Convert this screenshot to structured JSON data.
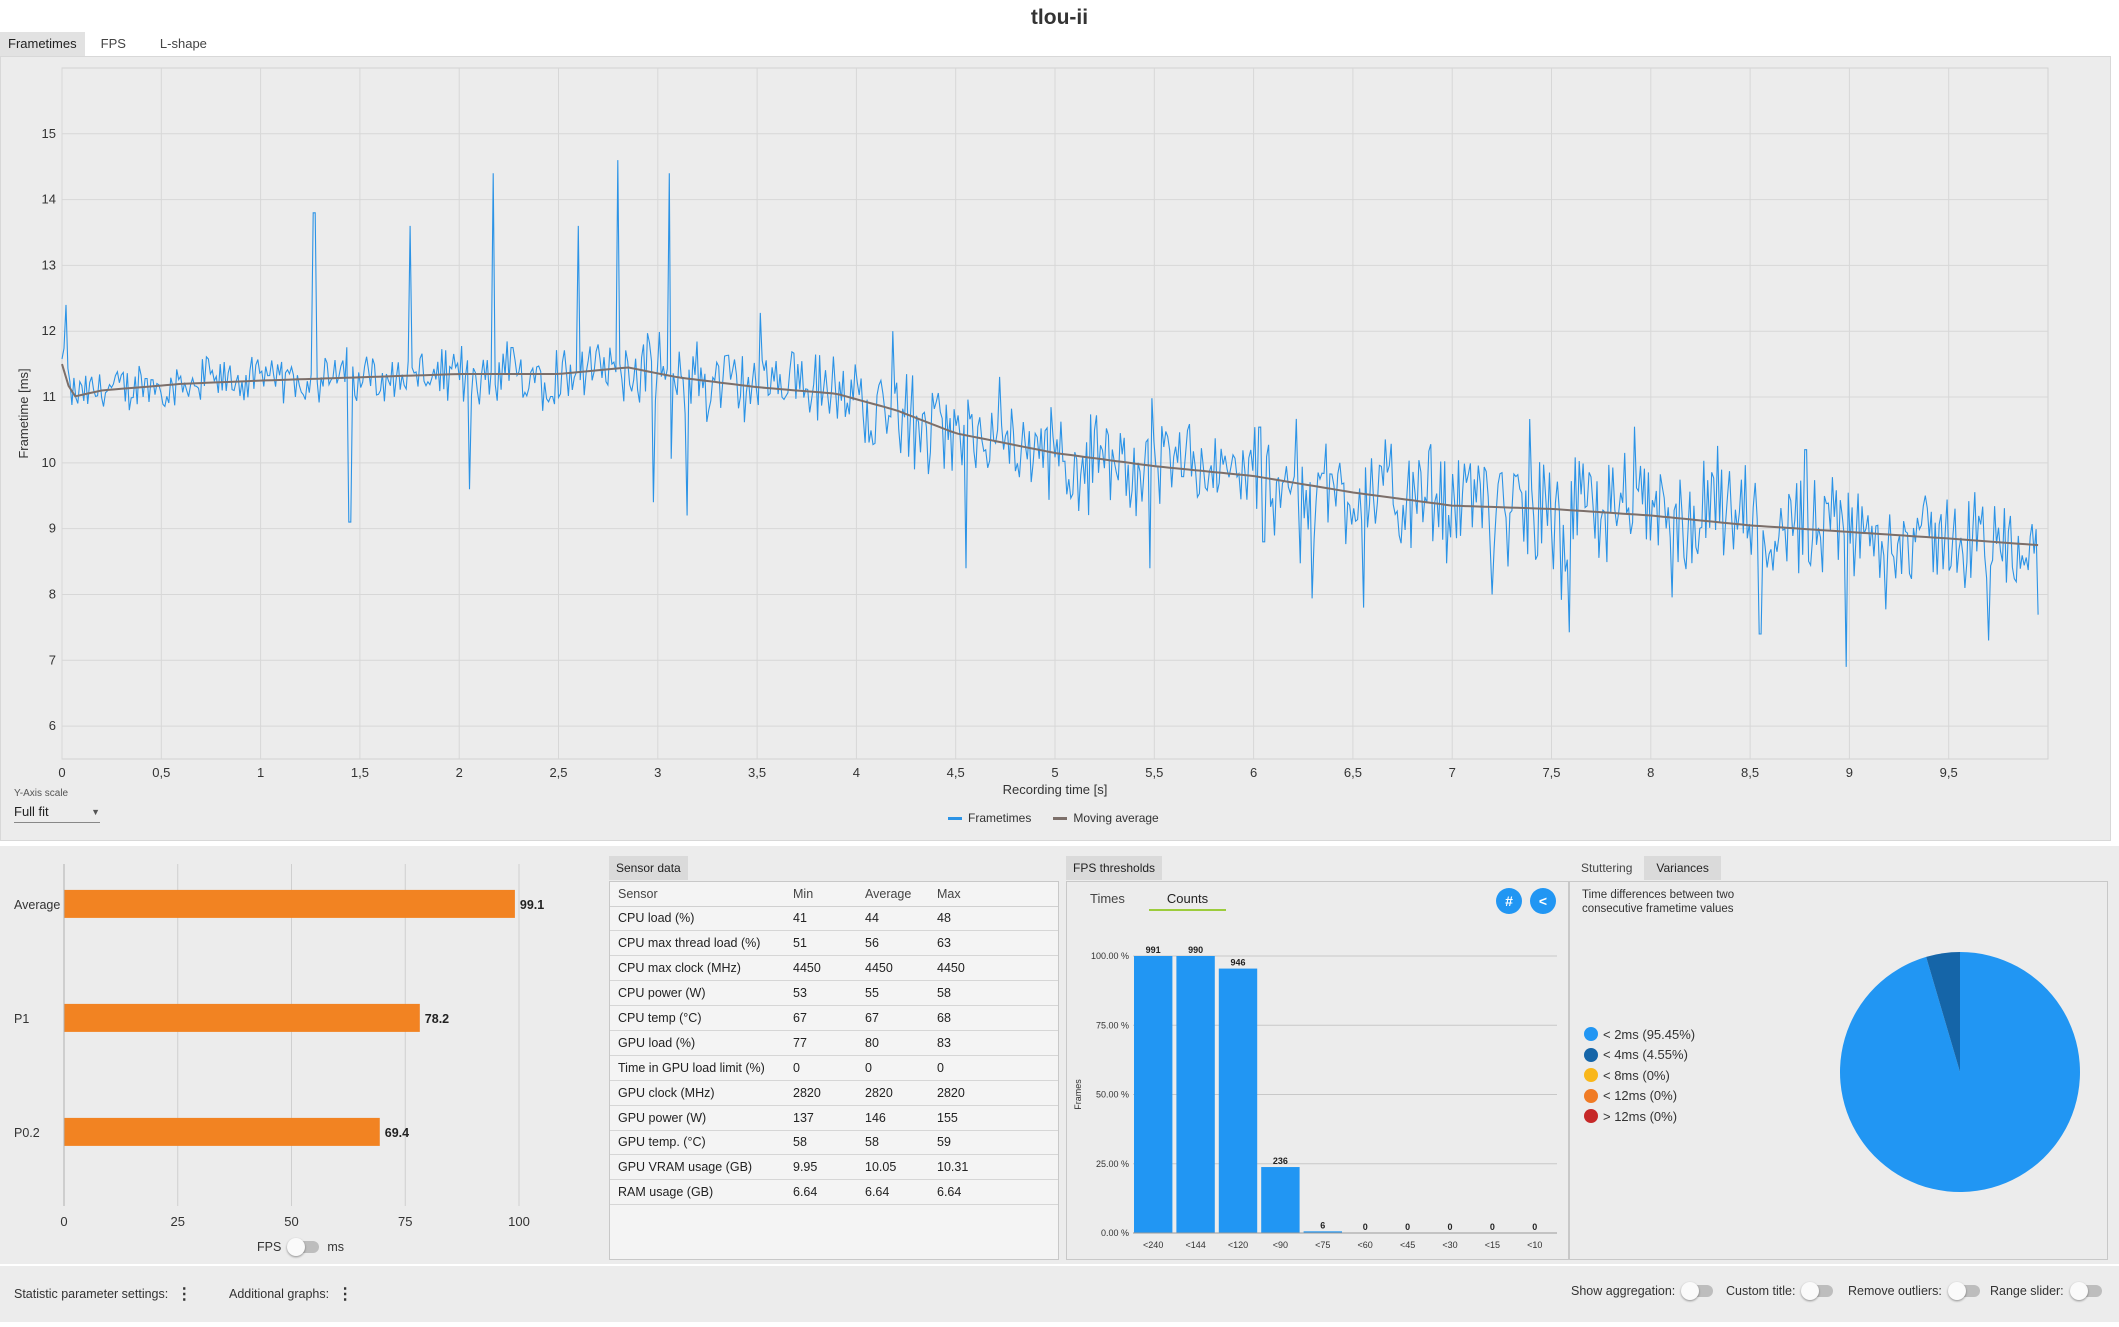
{
  "title": "tlou-ii",
  "main_tabs": [
    "Frametimes",
    "FPS",
    "L-shape"
  ],
  "y_axis_scale": {
    "label": "Y-Axis scale",
    "value": "Full fit"
  },
  "colors": {
    "frametimes": "#2b93e6",
    "moving_average": "#7c6f6a",
    "bars": "#f28322",
    "counts_bars": "#2196f3"
  },
  "chart_data": [
    {
      "type": "line",
      "xlabel": "Recording time [s]",
      "ylabel": "Frametime [ms]",
      "xlim": [
        0,
        10
      ],
      "ylim": [
        5.5,
        16
      ],
      "x_ticks": [
        "0",
        "0,5",
        "1",
        "1,5",
        "2",
        "2,5",
        "3",
        "3,5",
        "4",
        "4,5",
        "5",
        "5,5",
        "6",
        "6,5",
        "7",
        "7,5",
        "8",
        "8,5",
        "9",
        "9,5"
      ],
      "y_ticks": [
        "6",
        "7",
        "8",
        "9",
        "10",
        "11",
        "12",
        "13",
        "14",
        "15"
      ],
      "grid": true,
      "legend": "bottom-center",
      "series": [
        {
          "name": "Frametimes",
          "noise": [
            0.3,
            0.3,
            0.45,
            0.55,
            0.55,
            0.6,
            0.75,
            0.75,
            0.65,
            0.6,
            0.6
          ],
          "spikes": [
            [
              0.02,
              12.4
            ],
            [
              1.27,
              13.8
            ],
            [
              1.45,
              9.1
            ],
            [
              1.75,
              13.6
            ],
            [
              2.05,
              9.6
            ],
            [
              2.17,
              14.4
            ],
            [
              2.6,
              13.6
            ],
            [
              2.8,
              14.6
            ],
            [
              2.98,
              9.4
            ],
            [
              3.06,
              14.4
            ],
            [
              3.15,
              9.2
            ],
            [
              4.18,
              12
            ],
            [
              4.55,
              8.4
            ],
            [
              5.48,
              8.4
            ],
            [
              6.05,
              8.8
            ],
            [
              6.55,
              7.8
            ],
            [
              7.2,
              8.0
            ],
            [
              8.55,
              7.4
            ],
            [
              8.78,
              10.2
            ],
            [
              8.98,
              6.9
            ],
            [
              9.7,
              7.3
            ]
          ]
        },
        {
          "name": "Moving average",
          "x": [
            0,
            0.05,
            0.2,
            0.6,
            1.0,
            1.5,
            2.0,
            2.5,
            2.85,
            3.1,
            3.5,
            3.9,
            4.2,
            4.5,
            5.0,
            5.5,
            6.0,
            6.5,
            7.0,
            7.5,
            8.0,
            8.5,
            9.0,
            9.5,
            9.95
          ],
          "y": [
            11.5,
            11.0,
            11.1,
            11.2,
            11.25,
            11.3,
            11.35,
            11.35,
            11.45,
            11.3,
            11.15,
            11.05,
            10.8,
            10.45,
            10.15,
            9.95,
            9.8,
            9.55,
            9.35,
            9.3,
            9.2,
            9.05,
            8.95,
            8.85,
            8.75
          ]
        }
      ]
    },
    {
      "type": "bar",
      "orientation": "horizontal",
      "categories": [
        "Average",
        "P1",
        "P0.2"
      ],
      "values": [
        99.1,
        78.2,
        69.4
      ],
      "value_labels": [
        "99.1",
        "78.2",
        "69.4"
      ],
      "x_ticks": [
        "0",
        "25",
        "50",
        "75",
        "100"
      ],
      "xlim": [
        0,
        100
      ],
      "grid": true
    },
    {
      "type": "bar",
      "categories": [
        "<240",
        "<144",
        "<120",
        "<90",
        "<75",
        "<60",
        "<45",
        "<30",
        "<15",
        "<10"
      ],
      "values": [
        991,
        990,
        946,
        236,
        6,
        0,
        0,
        0,
        0,
        0
      ],
      "percent_values": [
        100,
        100,
        95.46,
        23.81,
        0.6,
        0,
        0,
        0,
        0,
        0
      ],
      "value_labels": [
        "991",
        "990",
        "946",
        "236",
        "6",
        "0",
        "0",
        "0",
        "0",
        "0"
      ],
      "ylabel": "Frames",
      "y_ticks": [
        "0.00 %",
        "25.00 %",
        "50.00 %",
        "75.00 %",
        "100.00 %"
      ],
      "ylim": [
        0,
        100
      ],
      "grid": true
    },
    {
      "type": "pie",
      "labels": [
        "< 2ms (95.45%)",
        "< 4ms (4.55%)",
        "< 8ms (0%)",
        "< 12ms (0%)",
        "> 12ms (0%)"
      ],
      "values": [
        95.45,
        4.55,
        0,
        0,
        0
      ],
      "colors": [
        "#2196f3",
        "#1565a8",
        "#f9b71a",
        "#f07b25",
        "#c62828"
      ],
      "legend": "left"
    }
  ],
  "legend_labels": [
    "Frametimes",
    "Moving average"
  ],
  "fps_toggle": {
    "left": "FPS",
    "right": "ms"
  },
  "sensor_panel": {
    "tab": "Sensor data",
    "columns": [
      "Sensor",
      "Min",
      "Average",
      "Max"
    ],
    "rows": [
      [
        "CPU load (%)",
        "41",
        "44",
        "48"
      ],
      [
        "CPU max thread load (%)",
        "51",
        "56",
        "63"
      ],
      [
        "CPU max clock (MHz)",
        "4450",
        "4450",
        "4450"
      ],
      [
        "CPU power (W)",
        "53",
        "55",
        "58"
      ],
      [
        "CPU temp (°C)",
        "67",
        "67",
        "68"
      ],
      [
        "GPU load (%)",
        "77",
        "80",
        "83"
      ],
      [
        "Time in GPU load limit (%)",
        "0",
        "0",
        "0"
      ],
      [
        "GPU clock (MHz)",
        "2820",
        "2820",
        "2820"
      ],
      [
        "GPU power (W)",
        "137",
        "146",
        "155"
      ],
      [
        "GPU temp. (°C)",
        "58",
        "58",
        "59"
      ],
      [
        "GPU VRAM usage (GB)",
        "9.95",
        "10.05",
        "10.31"
      ],
      [
        "RAM usage (GB)",
        "6.64",
        "6.64",
        "6.64"
      ]
    ]
  },
  "fps_thresholds": {
    "tab": "FPS thresholds",
    "subtabs": [
      "Times",
      "Counts"
    ],
    "hash_icon": "#",
    "back_icon": "<"
  },
  "variances_panel": {
    "tabs": [
      "Stuttering",
      "Variances"
    ],
    "description": "Time differences between two consecutive frametime values"
  },
  "footer": {
    "statistic_settings": "Statistic parameter settings:",
    "additional_graphs": "Additional graphs:",
    "show_aggregation": "Show aggregation:",
    "custom_title": "Custom title:",
    "remove_outliers": "Remove outliers:",
    "range_slider": "Range slider:"
  }
}
